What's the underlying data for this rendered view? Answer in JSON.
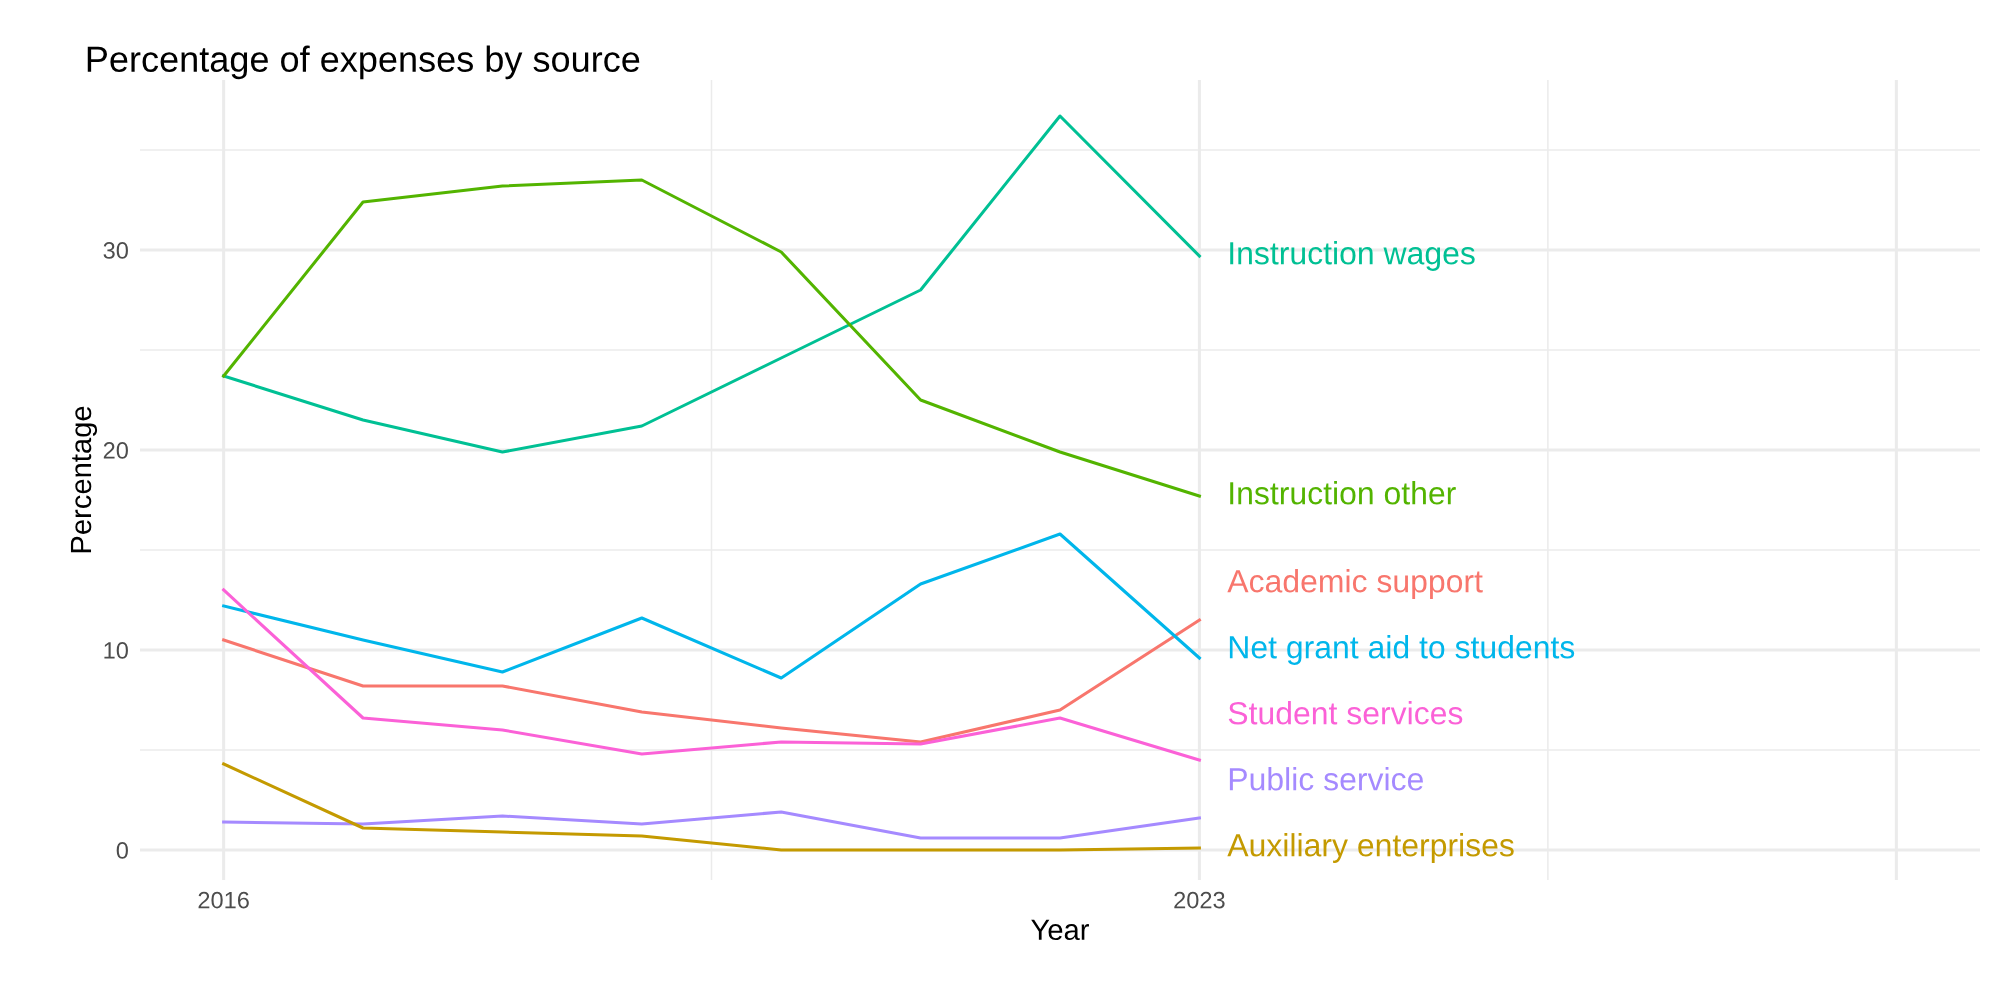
{
  "chart_data": {
    "type": "line",
    "title": "Percentage of expenses by source",
    "xlabel": "Year",
    "ylabel": "Percentage",
    "x": [
      2016,
      2017,
      2018,
      2019,
      2020,
      2021,
      2022,
      2023
    ],
    "series": [
      {
        "name": "Instruction wages",
        "color": "#00C094",
        "values": [
          23.7,
          21.5,
          19.9,
          21.2,
          24.6,
          28.0,
          36.7,
          29.7
        ]
      },
      {
        "name": "Instruction other",
        "color": "#53B400",
        "values": [
          23.7,
          32.4,
          33.2,
          33.5,
          29.9,
          22.5,
          19.9,
          17.7
        ]
      },
      {
        "name": "Academic support",
        "color": "#F8766D",
        "values": [
          10.5,
          8.2,
          8.2,
          6.9,
          6.1,
          5.4,
          7.0,
          11.5
        ]
      },
      {
        "name": "Net grant aid to students",
        "color": "#00B6EB",
        "values": [
          12.2,
          10.5,
          8.9,
          11.6,
          8.6,
          13.3,
          15.8,
          9.6
        ]
      },
      {
        "name": "Student services",
        "color": "#FB61D7",
        "values": [
          13.0,
          6.6,
          6.0,
          4.8,
          5.4,
          5.3,
          6.6,
          4.5
        ]
      },
      {
        "name": "Public service",
        "color": "#A58AFF",
        "values": [
          1.4,
          1.3,
          1.7,
          1.3,
          1.9,
          0.6,
          0.6,
          1.6
        ]
      },
      {
        "name": "Auxiliary enterprises",
        "color": "#C49A00",
        "values": [
          4.3,
          1.1,
          0.9,
          0.7,
          0.0,
          0.0,
          0.0,
          0.1
        ]
      }
    ],
    "xlim": [
      2015.4,
      2028.6
    ],
    "xticks": [
      2016,
      2023,
      {
        "value": 2028,
        "label": null
      }
    ],
    "ylim": [
      -1.5,
      38.5
    ],
    "yticks": [
      0,
      10,
      20,
      30
    ],
    "grid": true,
    "legend": false,
    "marker": "none",
    "line_style": "solid"
  }
}
